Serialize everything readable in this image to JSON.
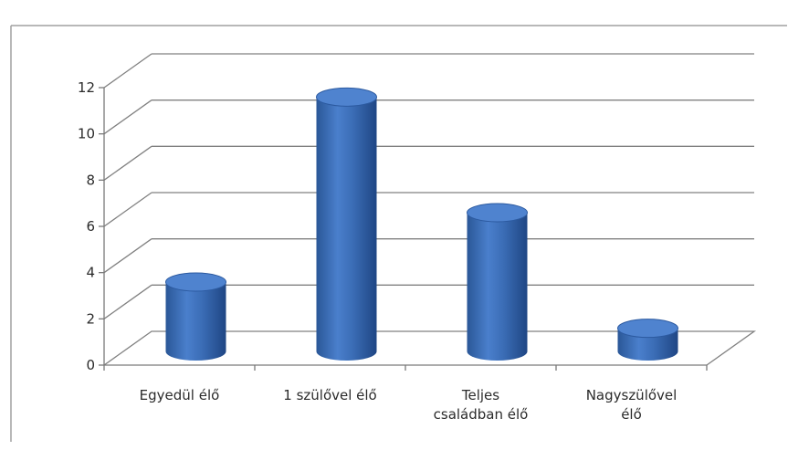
{
  "chart_data": {
    "type": "bar",
    "style": "3d-cylinder",
    "categories": [
      [
        "Egyedül élő"
      ],
      [
        "1 szülővel élő"
      ],
      [
        "Teljes",
        "családban élő"
      ],
      [
        "Nagyszülővel",
        "élő"
      ]
    ],
    "series": [
      {
        "values": [
          3,
          11,
          6,
          1
        ]
      }
    ],
    "y_ticks": [
      "0",
      "2",
      "4",
      "6",
      "8",
      "10",
      "12"
    ],
    "ylim": [
      0,
      12
    ],
    "grid": true,
    "legend": "none",
    "colors": {
      "bar_side": "#3e6fb8",
      "bar_dark": "#1f4c8f",
      "bar_top": "#4f83cf",
      "grid": "#808080",
      "axis": "#7a7a7a",
      "frame": "#a0a0a0"
    }
  }
}
